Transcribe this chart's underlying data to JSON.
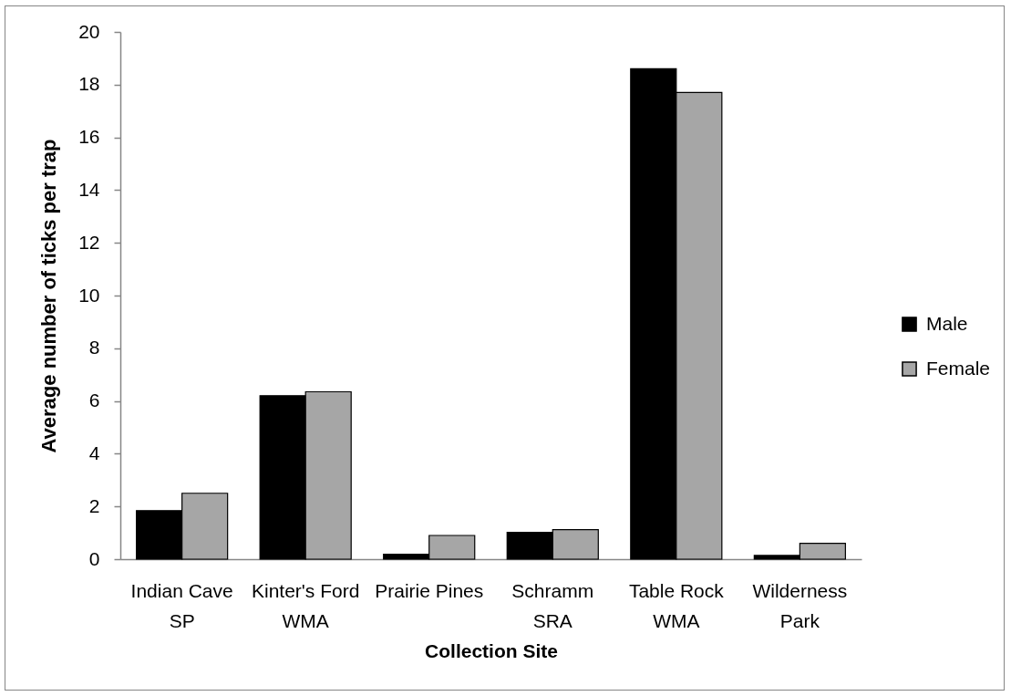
{
  "chart_data": {
    "type": "bar",
    "xlabel": "Collection Site",
    "ylabel": "Average number of ticks per trap",
    "categories": [
      "Indian Cave SP",
      "Kinter's Ford WMA",
      "Prairie Pines",
      "Schramm SRA",
      "Table Rock WMA",
      "Wilderness Park"
    ],
    "series": [
      {
        "name": "Male",
        "color": "#000000",
        "values": [
          1.84,
          6.2,
          0.19,
          1.02,
          18.6,
          0.14
        ]
      },
      {
        "name": "Female",
        "color": "#a6a6a6",
        "values": [
          2.5,
          6.35,
          0.9,
          1.12,
          17.7,
          0.6
        ]
      }
    ],
    "ylim": [
      0,
      20
    ],
    "yticks": [
      0,
      2,
      4,
      6,
      8,
      10,
      12,
      14,
      16,
      18,
      20
    ],
    "legend": "right"
  }
}
